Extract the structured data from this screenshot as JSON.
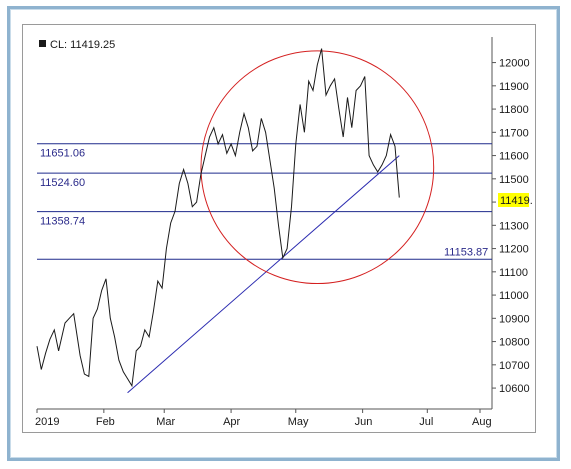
{
  "legend": {
    "text": "CL: 11419.25"
  },
  "price_tag": "11419.",
  "colors": {
    "price": "#1a1a1a",
    "levels": "#1e2a8c",
    "trendline": "#2b2bb0",
    "circle": "#d42020",
    "tag_bg": "#ffff00"
  },
  "chart_data": {
    "type": "line",
    "grid": false,
    "series": [
      {
        "name": "CL",
        "points": [
          [
            "2019-01-01",
            10780
          ],
          [
            "2019-01-03",
            10680
          ],
          [
            "2019-01-05",
            10750
          ],
          [
            "2019-01-07",
            10810
          ],
          [
            "2019-01-09",
            10850
          ],
          [
            "2019-01-11",
            10760
          ],
          [
            "2019-01-14",
            10880
          ],
          [
            "2019-01-16",
            10900
          ],
          [
            "2019-01-18",
            10920
          ],
          [
            "2019-01-21",
            10740
          ],
          [
            "2019-01-23",
            10660
          ],
          [
            "2019-01-25",
            10650
          ],
          [
            "2019-01-27",
            10900
          ],
          [
            "2019-01-29",
            10940
          ],
          [
            "2019-01-31",
            11020
          ],
          [
            "2019-02-02",
            11070
          ],
          [
            "2019-02-04",
            10900
          ],
          [
            "2019-02-06",
            10820
          ],
          [
            "2019-02-08",
            10720
          ],
          [
            "2019-02-10",
            10670
          ],
          [
            "2019-02-12",
            10640
          ],
          [
            "2019-02-14",
            10610
          ],
          [
            "2019-02-16",
            10760
          ],
          [
            "2019-02-18",
            10780
          ],
          [
            "2019-02-20",
            10850
          ],
          [
            "2019-02-22",
            10820
          ],
          [
            "2019-02-24",
            10930
          ],
          [
            "2019-02-26",
            11060
          ],
          [
            "2019-02-28",
            11030
          ],
          [
            "2019-03-02",
            11200
          ],
          [
            "2019-03-04",
            11310
          ],
          [
            "2019-03-06",
            11360
          ],
          [
            "2019-03-08",
            11480
          ],
          [
            "2019-03-10",
            11540
          ],
          [
            "2019-03-12",
            11480
          ],
          [
            "2019-03-14",
            11380
          ],
          [
            "2019-03-16",
            11400
          ],
          [
            "2019-03-18",
            11520
          ],
          [
            "2019-03-20",
            11600
          ],
          [
            "2019-03-22",
            11680
          ],
          [
            "2019-03-24",
            11720
          ],
          [
            "2019-03-26",
            11650
          ],
          [
            "2019-03-28",
            11690
          ],
          [
            "2019-03-30",
            11610
          ],
          [
            "2019-04-01",
            11650
          ],
          [
            "2019-04-03",
            11600
          ],
          [
            "2019-04-05",
            11700
          ],
          [
            "2019-04-07",
            11780
          ],
          [
            "2019-04-09",
            11720
          ],
          [
            "2019-04-11",
            11620
          ],
          [
            "2019-04-13",
            11640
          ],
          [
            "2019-04-15",
            11760
          ],
          [
            "2019-04-17",
            11700
          ],
          [
            "2019-04-19",
            11580
          ],
          [
            "2019-04-21",
            11460
          ],
          [
            "2019-04-23",
            11300
          ],
          [
            "2019-04-25",
            11160
          ],
          [
            "2019-04-27",
            11200
          ],
          [
            "2019-04-29",
            11380
          ],
          [
            "2019-05-01",
            11650
          ],
          [
            "2019-05-03",
            11820
          ],
          [
            "2019-05-05",
            11700
          ],
          [
            "2019-05-07",
            11920
          ],
          [
            "2019-05-09",
            11880
          ],
          [
            "2019-05-11",
            11990
          ],
          [
            "2019-05-13",
            12060
          ],
          [
            "2019-05-15",
            11860
          ],
          [
            "2019-05-17",
            11900
          ],
          [
            "2019-05-19",
            11930
          ],
          [
            "2019-05-21",
            11800
          ],
          [
            "2019-05-23",
            11680
          ],
          [
            "2019-05-25",
            11850
          ],
          [
            "2019-05-27",
            11720
          ],
          [
            "2019-05-29",
            11880
          ],
          [
            "2019-05-31",
            11900
          ],
          [
            "2019-06-02",
            11940
          ],
          [
            "2019-06-04",
            11600
          ],
          [
            "2019-06-06",
            11560
          ],
          [
            "2019-06-08",
            11530
          ],
          [
            "2019-06-10",
            11560
          ],
          [
            "2019-06-12",
            11600
          ],
          [
            "2019-06-14",
            11690
          ],
          [
            "2019-06-16",
            11640
          ],
          [
            "2019-06-18",
            11419.25
          ]
        ]
      }
    ],
    "horizontal_levels": [
      {
        "value": 11651.06,
        "label": "11651.06"
      },
      {
        "value": 11524.6,
        "label": "11524.60"
      },
      {
        "value": 11358.74,
        "label": "11358.74"
      },
      {
        "value": 11153.87,
        "label": "11153.87"
      }
    ],
    "trendline": {
      "from": [
        "2019-02-12",
        10580
      ],
      "to": [
        "2019-06-18",
        11600
      ]
    },
    "circle": {
      "center": [
        "2019-05-11",
        11550
      ],
      "radius_days": 54,
      "radius_value": 500
    },
    "x_ticks": [
      "2019",
      "Feb",
      "Mar",
      "Apr",
      "May",
      "Jun",
      "Jul",
      "Aug"
    ],
    "y_ticks": [
      10600,
      10700,
      10800,
      10900,
      11000,
      11100,
      11200,
      11300,
      11400,
      11500,
      11600,
      11700,
      11800,
      11900,
      12000
    ],
    "ylim": [
      10510,
      12110
    ],
    "xlim": [
      "2019-01-01",
      "2019-07-31"
    ],
    "legend_placement": "top-left"
  }
}
